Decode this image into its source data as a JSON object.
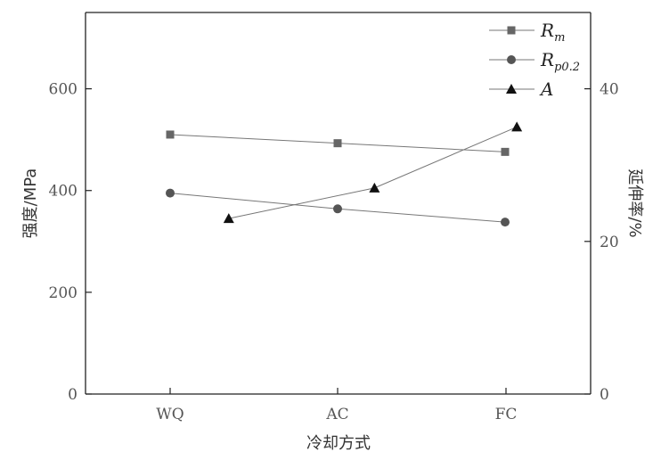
{
  "chart_data": {
    "type": "line",
    "categories": [
      "WQ",
      "AC",
      "FC"
    ],
    "xlabel": "冷却方式",
    "ylabel": "强度/MPa",
    "y2label": "延伸率/%",
    "ylim": [
      0,
      750
    ],
    "y2lim": [
      0,
      50
    ],
    "yticks": [
      0,
      200,
      400,
      600
    ],
    "y2ticks": [
      0,
      20,
      40
    ],
    "series": [
      {
        "name": "Rm",
        "name_main": "R",
        "name_sub": "m",
        "axis": "left",
        "marker": "square",
        "color": "#666666",
        "x": [
          0,
          1,
          2
        ],
        "values": [
          510,
          493,
          476
        ]
      },
      {
        "name": "Rp0.2",
        "name_main": "R",
        "name_sub": "p0.2",
        "axis": "left",
        "marker": "circle",
        "color": "#555555",
        "x": [
          0,
          1,
          2
        ],
        "values": [
          395,
          364,
          338
        ]
      },
      {
        "name": "A",
        "name_main": "A",
        "name_sub": "",
        "axis": "right",
        "marker": "triangle",
        "color": "#111111",
        "x": [
          0.35,
          1.22,
          2.07
        ],
        "values": [
          23,
          27,
          35
        ]
      }
    ],
    "legend_position": "top-right",
    "grid": false
  }
}
